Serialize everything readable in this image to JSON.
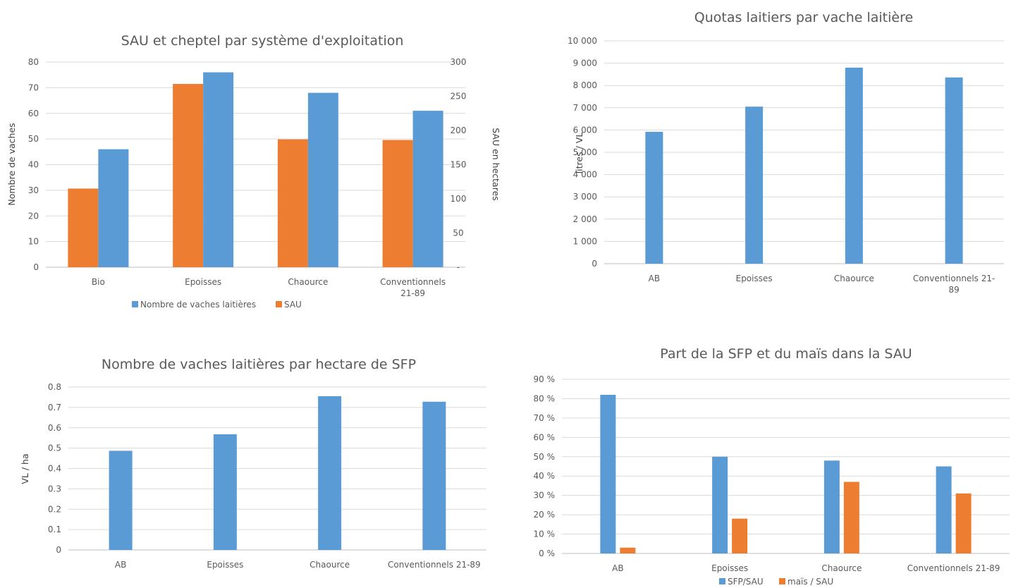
{
  "colors": {
    "blue": "#5b9bd5",
    "orange": "#ed7d31"
  },
  "chart_data": [
    {
      "type": "bar",
      "title": "SAU et cheptel par système d'exploitation",
      "ylabel": "Nombre de vaches",
      "y2label": "SAU en hectares",
      "categories": [
        "Bio",
        "Epoisses",
        "Chaource",
        "Conventionnels 21-89"
      ],
      "category_lines": [
        [
          "Bio"
        ],
        [
          "Epoisses"
        ],
        [
          "Chaource"
        ],
        [
          "Conventionnels",
          "21-89"
        ]
      ],
      "series": [
        {
          "name": "SAU",
          "axis": "right",
          "color": "#ed7d31",
          "values": [
            115,
            268,
            187,
            186
          ]
        },
        {
          "name": "Nombre de vaches laitières",
          "axis": "left",
          "color": "#5b9bd5",
          "values": [
            46,
            76,
            68,
            61
          ]
        }
      ],
      "ylim": [
        0,
        80
      ],
      "yticks": [
        "0",
        "10",
        "20",
        "30",
        "40",
        "50",
        "60",
        "70",
        "80"
      ],
      "y2lim": [
        0,
        300
      ],
      "y2ticks": [
        "-",
        "50",
        "100",
        "150",
        "200",
        "250",
        "300"
      ],
      "legend": {
        "position": "bottom",
        "entries": [
          "Nombre de vaches laitières",
          "SAU"
        ]
      },
      "grid": true
    },
    {
      "type": "bar",
      "title": "Quotas laitiers par vache laitière",
      "ylabel": "litres / VL",
      "categories": [
        "AB",
        "Epoisses",
        "Chaource",
        "Conventionnels 21-89"
      ],
      "category_lines": [
        [
          "AB"
        ],
        [
          "Epoisses"
        ],
        [
          "Chaource"
        ],
        [
          "Conventionnels 21-",
          "89"
        ]
      ],
      "series": [
        {
          "color": "#5b9bd5",
          "values": [
            5920,
            7050,
            8800,
            8360
          ]
        }
      ],
      "ylim": [
        0,
        10000
      ],
      "yticks": [
        "0",
        "1 000",
        "2 000",
        "3 000",
        "4 000",
        "5 000",
        "6 000",
        "7 000",
        "8 000",
        "9 000",
        "10 000"
      ],
      "grid": true
    },
    {
      "type": "bar",
      "title": "Nombre de vaches laitières par hectare de SFP",
      "ylabel": "VL / ha",
      "categories": [
        "AB",
        "Epoisses",
        "Chaource",
        "Conventionnels 21-89"
      ],
      "category_lines": [
        [
          "AB"
        ],
        [
          "Epoisses"
        ],
        [
          "Chaource"
        ],
        [
          "Conventionnels 21-89"
        ]
      ],
      "series": [
        {
          "color": "#5b9bd5",
          "values": [
            0.487,
            0.568,
            0.755,
            0.728
          ]
        }
      ],
      "ylim": [
        0,
        0.8
      ],
      "yticks": [
        "0",
        "0.1",
        "0.2",
        "0.3",
        "0.4",
        "0.5",
        "0.6",
        "0.7",
        "0.8"
      ],
      "grid": true
    },
    {
      "type": "bar",
      "title": "Part de la SFP et du maïs dans la SAU",
      "categories": [
        "AB",
        "Epoisses",
        "Chaource",
        "Conventionnels 21-89"
      ],
      "category_lines": [
        [
          "AB"
        ],
        [
          "Epoisses"
        ],
        [
          "Chaource"
        ],
        [
          "Conventionnels 21-89"
        ]
      ],
      "series": [
        {
          "name": "SFP/SAU",
          "color": "#5b9bd5",
          "values": [
            82,
            50,
            48,
            45
          ]
        },
        {
          "name": "maïs / SAU",
          "color": "#ed7d31",
          "values": [
            3,
            18,
            37,
            31
          ]
        }
      ],
      "ylim": [
        0,
        90
      ],
      "yticks": [
        "0 %",
        "10 %",
        "20 %",
        "30 %",
        "40 %",
        "50 %",
        "60 %",
        "70 %",
        "80 %",
        "90 %"
      ],
      "legend": {
        "position": "bottom",
        "entries": [
          "SFP/SAU",
          "maïs / SAU"
        ]
      },
      "grid": true
    }
  ]
}
